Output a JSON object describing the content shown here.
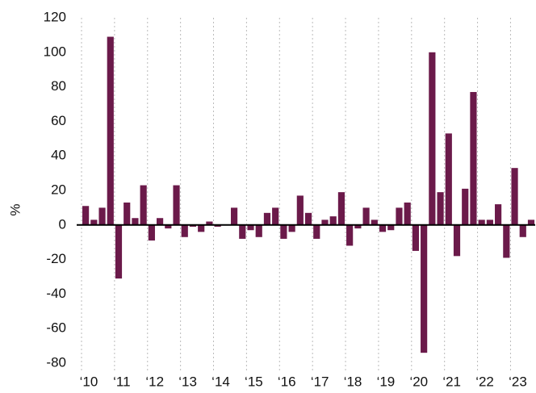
{
  "chart_data": {
    "type": "bar",
    "y_label": "%",
    "categories": [
      "‘10",
      null,
      null,
      null,
      "‘11",
      null,
      null,
      null,
      "‘12",
      null,
      null,
      null,
      "‘13",
      null,
      null,
      null,
      "‘14",
      null,
      null,
      null,
      "‘15",
      null,
      null,
      null,
      "‘16",
      null,
      null,
      null,
      "‘17",
      null,
      null,
      null,
      "‘18",
      null,
      null,
      null,
      "‘19",
      null,
      null,
      null,
      "‘20",
      null,
      null,
      null,
      "‘21",
      null,
      null,
      null,
      "‘22",
      null,
      null,
      null,
      "‘23",
      null,
      null
    ],
    "values": [
      11,
      3,
      10,
      109,
      -31,
      13,
      4,
      23,
      -9,
      4,
      -2,
      23,
      -7,
      -1,
      -4,
      2,
      -1,
      0,
      10,
      -8,
      -3,
      -7,
      7,
      10,
      -8,
      -4,
      17,
      7,
      -8,
      3,
      5,
      19,
      -12,
      -2,
      10,
      3,
      -4,
      -3,
      10,
      13,
      -15,
      -74,
      100,
      19,
      53,
      -18,
      21,
      77,
      3,
      3,
      12,
      -19,
      33,
      -7,
      3
    ],
    "color": "#6b1a4a",
    "ylim": [
      -80,
      120
    ],
    "yticks": [
      -80,
      -60,
      -40,
      -20,
      0,
      20,
      40,
      60,
      80,
      100,
      120
    ],
    "grid": true
  }
}
